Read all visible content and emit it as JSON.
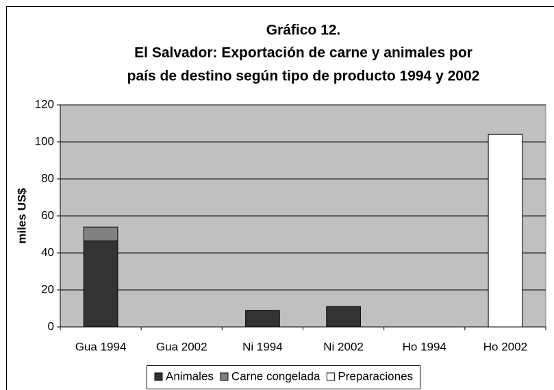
{
  "chart_data": {
    "type": "stacked_bar",
    "title": [
      "Gráfico 12.",
      "El Salvador: Exportación de carne y animales por",
      "país de destino según tipo de producto 1994 y 2002"
    ],
    "y_label": "miles US$",
    "categories": [
      "Gua 1994",
      "Gua 2002",
      "Ni 1994",
      "Ni 2002",
      "Ho 1994",
      "Ho 2002"
    ],
    "series": [
      {
        "name": "Animales",
        "color": "#333333",
        "values": [
          46.5,
          0,
          9,
          11,
          0,
          0
        ]
      },
      {
        "name": "Carne congelada",
        "color": "#808080",
        "values": [
          7.5,
          0,
          0,
          0,
          0,
          0
        ]
      },
      {
        "name": "Preparaciones",
        "color": "#ffffff",
        "values": [
          0,
          0,
          0,
          0,
          0,
          104
        ]
      }
    ],
    "ylim": [
      0,
      120
    ],
    "yticks": [
      0,
      20,
      40,
      60,
      80,
      100,
      120
    ],
    "grid": true,
    "legend": "bottom"
  }
}
